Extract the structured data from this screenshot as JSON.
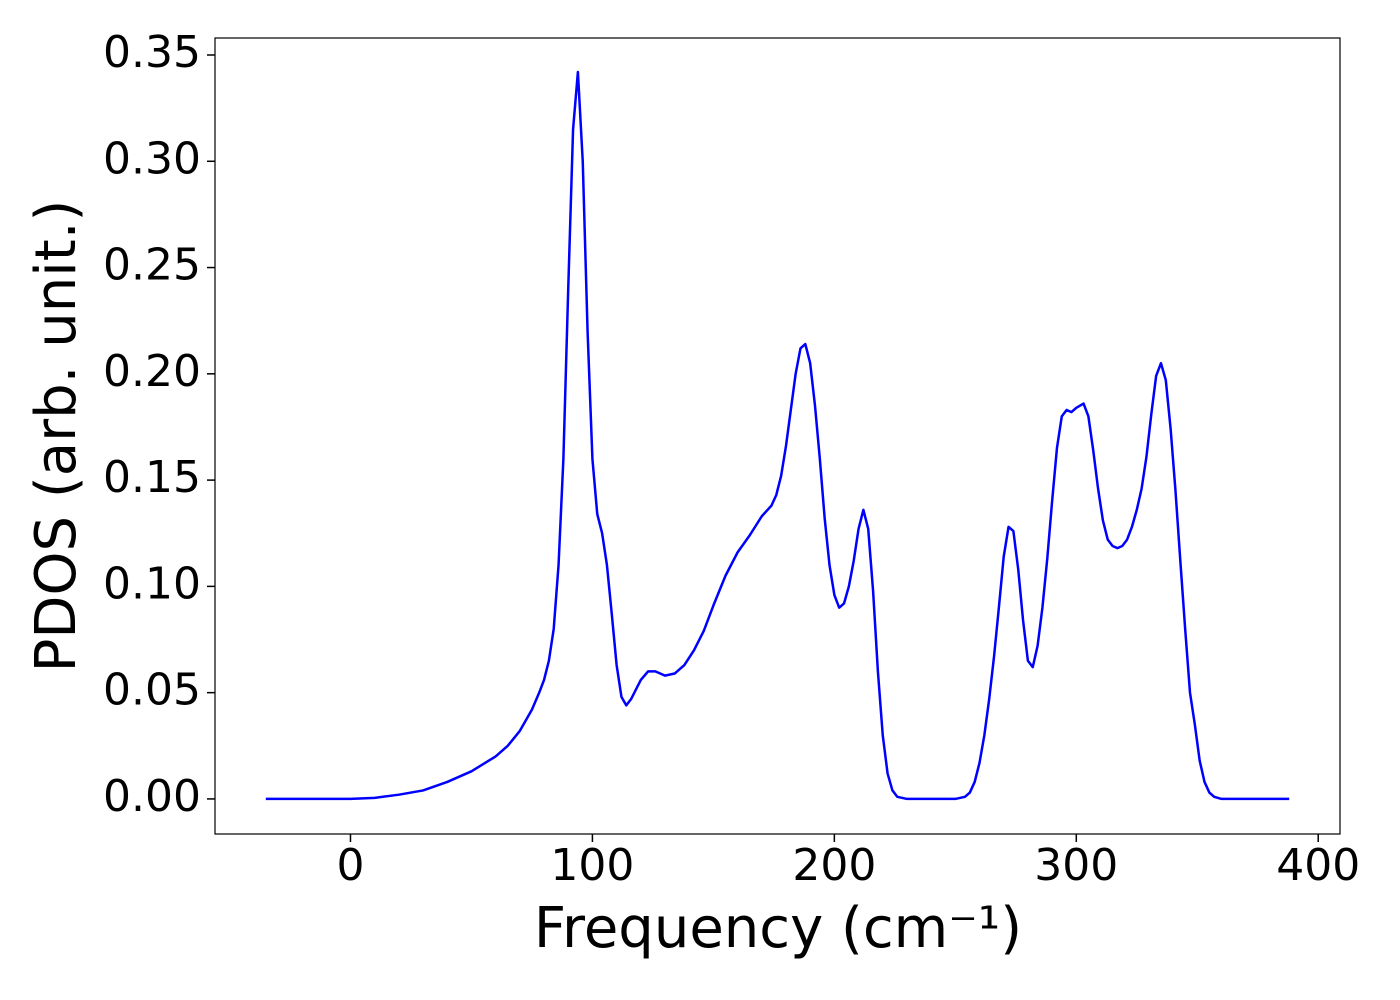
{
  "chart_data": {
    "type": "line",
    "xlabel": "Frequency (cm⁻¹)",
    "ylabel": "PDOS (arb. unit.)",
    "xlim": [
      -56,
      409
    ],
    "ylim": [
      -0.0165,
      0.358
    ],
    "xticks": [
      0,
      100,
      200,
      300,
      400
    ],
    "yticks": [
      {
        "value": 0,
        "label": "0.00"
      },
      {
        "value": 0.05,
        "label": "0.05"
      },
      {
        "value": 0.1,
        "label": "0.10"
      },
      {
        "value": 0.15,
        "label": "0.15"
      },
      {
        "value": 0.2,
        "label": "0.20"
      },
      {
        "value": 0.25,
        "label": "0.25"
      },
      {
        "value": 0.3,
        "label": "0.30"
      },
      {
        "value": 0.35,
        "label": "0.35"
      }
    ],
    "series": [
      {
        "color": "#0000ff",
        "x": [
          -35,
          0,
          10,
          20,
          30,
          40,
          50,
          60,
          65,
          70,
          75,
          78,
          80,
          82,
          84,
          86,
          88,
          90,
          92,
          94,
          96,
          98,
          100,
          102,
          104,
          106,
          108,
          110,
          112,
          114,
          116,
          120,
          123,
          126,
          130,
          134,
          138,
          142,
          146,
          150,
          155,
          160,
          165,
          170,
          174,
          176,
          178,
          180,
          182,
          184,
          186,
          188,
          190,
          192,
          194,
          196,
          198,
          200,
          202,
          204,
          206,
          208,
          210,
          212,
          214,
          216,
          218,
          220,
          222,
          224,
          226,
          230,
          250,
          254,
          256,
          258,
          260,
          262,
          264,
          266,
          268,
          270,
          272,
          274,
          276,
          278,
          280,
          282,
          284,
          286,
          288,
          290,
          292,
          294,
          296,
          298,
          300,
          303,
          305,
          307,
          309,
          311,
          313,
          315,
          317,
          319,
          321,
          323,
          325,
          327,
          329,
          331,
          333,
          335,
          337,
          339,
          341,
          343,
          345,
          347,
          349,
          351,
          353,
          355,
          357,
          360,
          388
        ],
        "values": [
          0,
          0,
          0.0005,
          0.002,
          0.004,
          0.008,
          0.013,
          0.02,
          0.025,
          0.032,
          0.042,
          0.05,
          0.056,
          0.065,
          0.08,
          0.11,
          0.16,
          0.24,
          0.315,
          0.342,
          0.3,
          0.22,
          0.16,
          0.134,
          0.125,
          0.11,
          0.087,
          0.063,
          0.048,
          0.044,
          0.047,
          0.056,
          0.06,
          0.06,
          0.058,
          0.059,
          0.063,
          0.07,
          0.079,
          0.091,
          0.105,
          0.116,
          0.124,
          0.133,
          0.138,
          0.143,
          0.152,
          0.166,
          0.183,
          0.2,
          0.212,
          0.214,
          0.205,
          0.185,
          0.16,
          0.132,
          0.11,
          0.096,
          0.09,
          0.092,
          0.1,
          0.112,
          0.127,
          0.136,
          0.127,
          0.098,
          0.06,
          0.03,
          0.012,
          0.004,
          0.001,
          0,
          0,
          0.001,
          0.003,
          0.008,
          0.017,
          0.03,
          0.047,
          0.067,
          0.09,
          0.114,
          0.128,
          0.126,
          0.108,
          0.084,
          0.065,
          0.062,
          0.072,
          0.09,
          0.113,
          0.14,
          0.165,
          0.18,
          0.183,
          0.182,
          0.184,
          0.186,
          0.18,
          0.164,
          0.146,
          0.131,
          0.122,
          0.119,
          0.118,
          0.119,
          0.122,
          0.128,
          0.136,
          0.146,
          0.161,
          0.181,
          0.199,
          0.205,
          0.197,
          0.174,
          0.145,
          0.112,
          0.08,
          0.05,
          0.035,
          0.018,
          0.008,
          0.003,
          0.001,
          0,
          0
        ]
      }
    ]
  }
}
